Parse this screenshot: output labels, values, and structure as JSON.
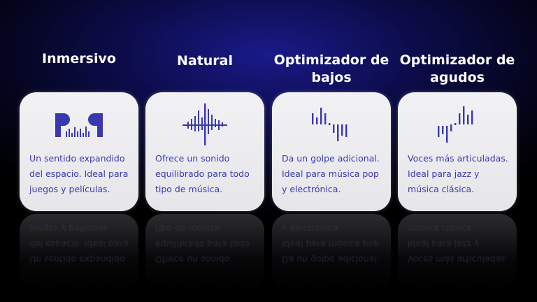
{
  "accent_color": "#3a38b0",
  "modes": [
    {
      "title": "Inmersivo",
      "icon": "earbuds-soundwave-icon",
      "description": "Un sentido expandido del espacio. Ideal para juegos y películas."
    },
    {
      "title": "Natural",
      "icon": "balanced-soundwave-icon",
      "description": "Ofrece un sonido equilibrado para todo tipo de música."
    },
    {
      "title": "Optimizador de bajos",
      "icon": "bass-soundwave-icon",
      "description": "Da un golpe adicional. Ideal para música pop y electrónica."
    },
    {
      "title": "Optimizador de agudos",
      "icon": "treble-soundwave-icon",
      "description": "Voces más articuladas. Ideal para jazz y música clásica."
    }
  ]
}
